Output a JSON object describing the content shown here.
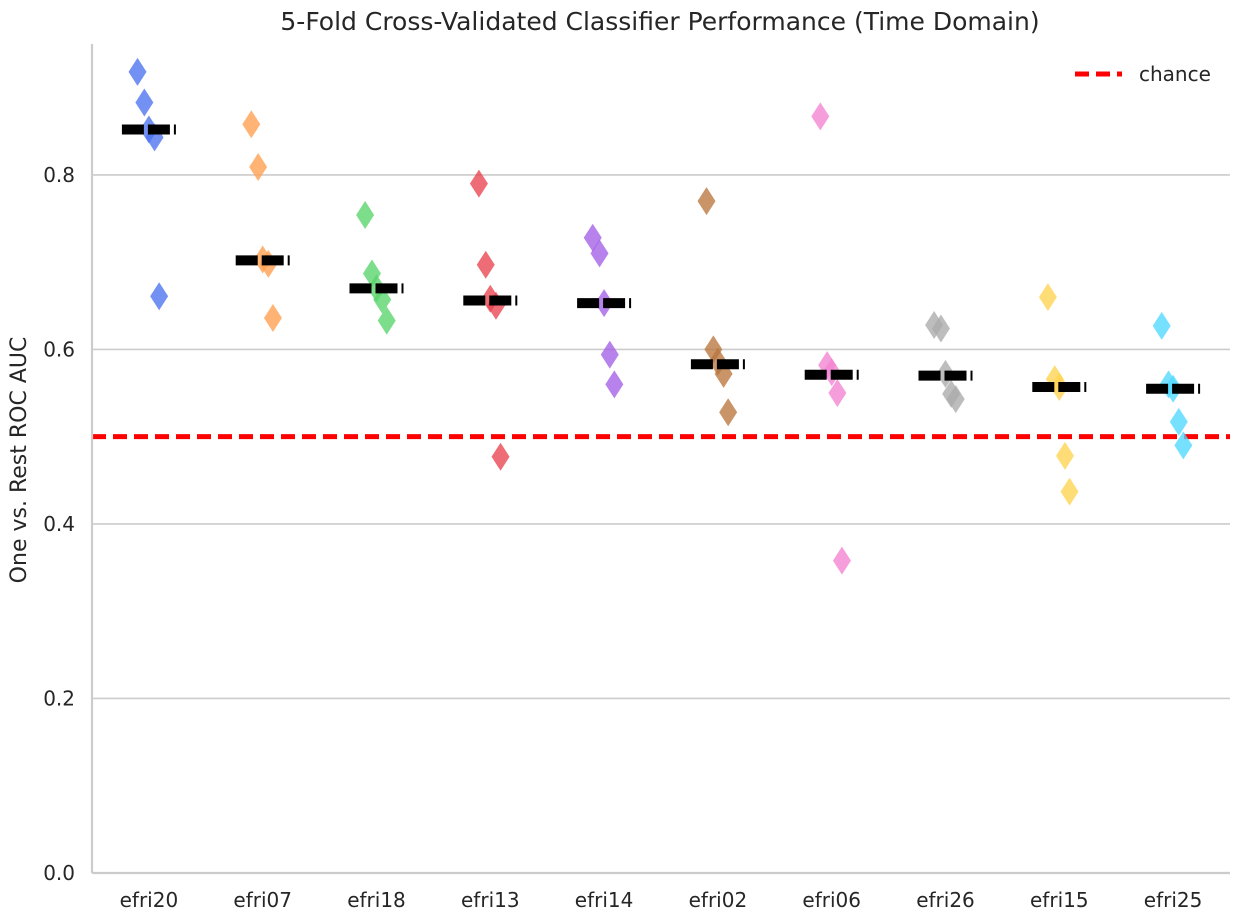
{
  "chart_data": {
    "type": "scatter",
    "title": "5-Fold Cross-Validated Classifier Performance (Time Domain)",
    "xlabel": "",
    "ylabel": "One vs. Rest ROC AUC",
    "ylim": [
      0.0,
      0.95
    ],
    "yticks": [
      0.0,
      0.2,
      0.4,
      0.6,
      0.8
    ],
    "ytick_labels": [
      "0.0",
      "0.2",
      "0.4",
      "0.6",
      "0.8"
    ],
    "grid": "horizontal",
    "legend_position": "top-right",
    "categories": [
      "efri20",
      "efri07",
      "efri18",
      "efri13",
      "efri14",
      "efri02",
      "efri06",
      "efri26",
      "efri15",
      "efri25"
    ],
    "series": [
      {
        "category": "efri20",
        "color": "#4c72f0",
        "mean": 0.852,
        "values": [
          0.918,
          0.883,
          0.852,
          0.843,
          0.661
        ]
      },
      {
        "category": "efri07",
        "color": "#ff9f50",
        "mean": 0.702,
        "values": [
          0.858,
          0.809,
          0.703,
          0.698,
          0.636
        ]
      },
      {
        "category": "efri18",
        "color": "#57d36a",
        "mean": 0.67,
        "values": [
          0.754,
          0.687,
          0.67,
          0.657,
          0.633
        ]
      },
      {
        "category": "efri13",
        "color": "#e8434f",
        "mean": 0.656,
        "values": [
          0.79,
          0.697,
          0.658,
          0.65,
          0.477
        ]
      },
      {
        "category": "efri14",
        "color": "#a35fe6",
        "mean": 0.653,
        "values": [
          0.728,
          0.71,
          0.653,
          0.594,
          0.56
        ]
      },
      {
        "category": "efri02",
        "color": "#b8763e",
        "mean": 0.583,
        "values": [
          0.77,
          0.6,
          0.586,
          0.572,
          0.528
        ]
      },
      {
        "category": "efri06",
        "color": "#f383d2",
        "mean": 0.571,
        "values": [
          0.867,
          0.582,
          0.574,
          0.55,
          0.358
        ]
      },
      {
        "category": "efri26",
        "color": "#aaaaaa",
        "mean": 0.57,
        "values": [
          0.628,
          0.624,
          0.572,
          0.549,
          0.543
        ]
      },
      {
        "category": "efri15",
        "color": "#ffd44f",
        "mean": 0.557,
        "values": [
          0.66,
          0.566,
          0.557,
          0.478,
          0.437
        ]
      },
      {
        "category": "efri25",
        "color": "#4fd9ff",
        "mean": 0.555,
        "values": [
          0.627,
          0.56,
          0.555,
          0.517,
          0.49
        ]
      }
    ],
    "offsets": [
      -0.1,
      -0.04,
      0.0,
      0.05,
      0.09
    ],
    "reference_line": {
      "y": 0.5,
      "label": "chance",
      "color": "#ff0000",
      "style": "dashed"
    },
    "mean_marker_color": "#000000"
  }
}
